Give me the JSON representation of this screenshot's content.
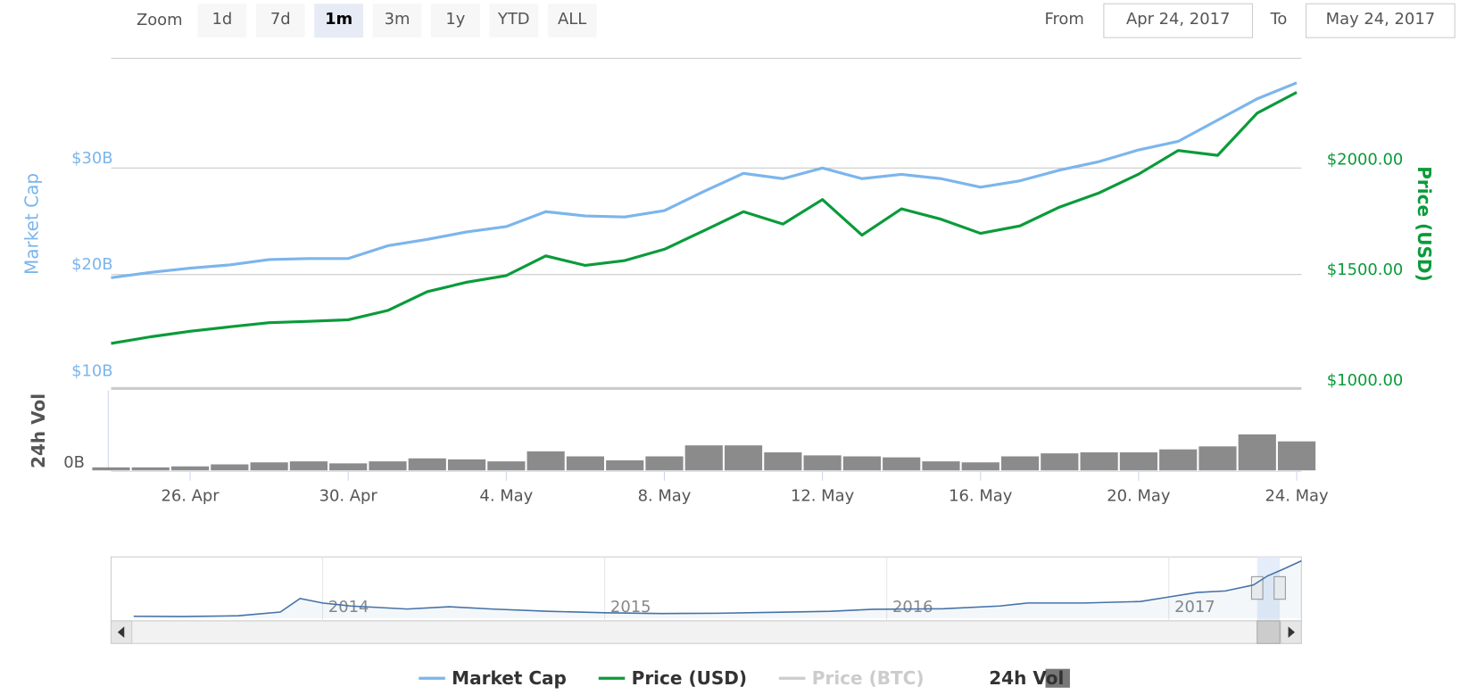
{
  "range_selector": {
    "zoom_label": "Zoom",
    "buttons": [
      "1d",
      "7d",
      "1m",
      "3m",
      "1y",
      "YTD",
      "ALL"
    ],
    "selected": "1m",
    "from_label": "From",
    "from": "Apr 24, 2017",
    "to_label": "To",
    "to": "May 24, 2017"
  },
  "chart_data": {
    "type": "line",
    "x": [
      "24. Apr",
      "25. Apr",
      "26. Apr",
      "27. Apr",
      "28. Apr",
      "29. Apr",
      "30. Apr",
      "1. May",
      "2. May",
      "3. May",
      "4. May",
      "5. May",
      "6. May",
      "7. May",
      "8. May",
      "9. May",
      "10. May",
      "11. May",
      "12. May",
      "13. May",
      "14. May",
      "15. May",
      "16. May",
      "17. May",
      "18. May",
      "19. May",
      "20. May",
      "21. May",
      "22. May",
      "23. May",
      "24. May"
    ],
    "xticks": [
      "26. Apr",
      "30. Apr",
      "4. May",
      "8. May",
      "12. May",
      "16. May",
      "20. May",
      "24. May"
    ],
    "y_label": "Market Cap",
    "ylim": [
      10,
      40.3
    ],
    "yticks": [
      {
        "value": 10,
        "label": "$10B"
      },
      {
        "value": 20,
        "label": "$20B"
      },
      {
        "value": 30,
        "label": "$30B"
      }
    ],
    "y2_label": "Price (USD)",
    "y2lim": [
      1000,
      2460
    ],
    "y2ticks": [
      {
        "value": 1000,
        "label": "$1000.00"
      },
      {
        "value": 1500,
        "label": "$1500.00"
      },
      {
        "value": 2000,
        "label": "$2000.00"
      }
    ],
    "series": [
      {
        "name": "Market Cap",
        "color": "#7cb5ec",
        "values": [
          19.7,
          20.2,
          20.6,
          20.9,
          21.4,
          21.5,
          21.5,
          22.7,
          23.3,
          24.0,
          24.5,
          25.9,
          25.5,
          25.4,
          26.0,
          27.8,
          29.5,
          29.0,
          30.0,
          29.0,
          29.4,
          29.0,
          28.2,
          28.8,
          29.8,
          30.6,
          31.7,
          32.5,
          34.5,
          36.5,
          38.0
        ]
      },
      {
        "name": "Price (USD)",
        "color": "#0a9b3a",
        "axis": "y2",
        "values": [
          1170,
          1200,
          1225,
          1245,
          1264,
          1270,
          1277,
          1319,
          1404,
          1447,
          1477,
          1566,
          1523,
          1545,
          1596,
          1680,
          1766,
          1710,
          1821,
          1660,
          1779,
          1732,
          1668,
          1702,
          1787,
          1851,
          1936,
          2043,
          2021,
          2212,
          2306
        ]
      },
      {
        "name": "Price (BTC)",
        "color": "#cccccc",
        "visible": false
      }
    ],
    "volume": {
      "name": "24h Vol",
      "label": "24h Vol",
      "color": "#777777",
      "ylim": [
        0,
        4
      ],
      "yticks": [
        {
          "value": 0,
          "label": "0B"
        }
      ],
      "values": [
        0.15,
        0.15,
        0.2,
        0.3,
        0.4,
        0.45,
        0.35,
        0.45,
        0.6,
        0.55,
        0.45,
        0.95,
        0.7,
        0.5,
        0.7,
        1.25,
        1.25,
        0.9,
        0.75,
        0.7,
        0.65,
        0.45,
        0.4,
        0.7,
        0.85,
        0.9,
        0.9,
        1.05,
        1.2,
        1.8,
        1.45
      ]
    }
  },
  "navigator": {
    "xlim": [
      2013.25,
      2017.47
    ],
    "xticks": [
      2014,
      2015,
      2016,
      2017
    ],
    "ylim": [
      0,
      40
    ],
    "x": [
      2013.33,
      2013.5,
      2013.7,
      2013.85,
      2013.92,
      2014.0,
      2014.1,
      2014.3,
      2014.45,
      2014.6,
      2014.8,
      2015.0,
      2015.2,
      2015.4,
      2015.6,
      2015.8,
      2015.95,
      2016.2,
      2016.4,
      2016.5,
      2016.7,
      2016.9,
      2017.0,
      2017.1,
      2017.2,
      2017.3,
      2017.35,
      2017.4,
      2017.47
    ],
    "values": [
      1.2,
      1.0,
      1.5,
      4,
      13,
      10,
      8,
      6,
      7.5,
      6,
      4.5,
      3.5,
      3,
      3.2,
      3.8,
      4.5,
      5.8,
      6.2,
      8,
      10,
      10,
      11,
      14,
      17,
      18,
      22,
      28,
      32,
      38
    ]
  }
}
